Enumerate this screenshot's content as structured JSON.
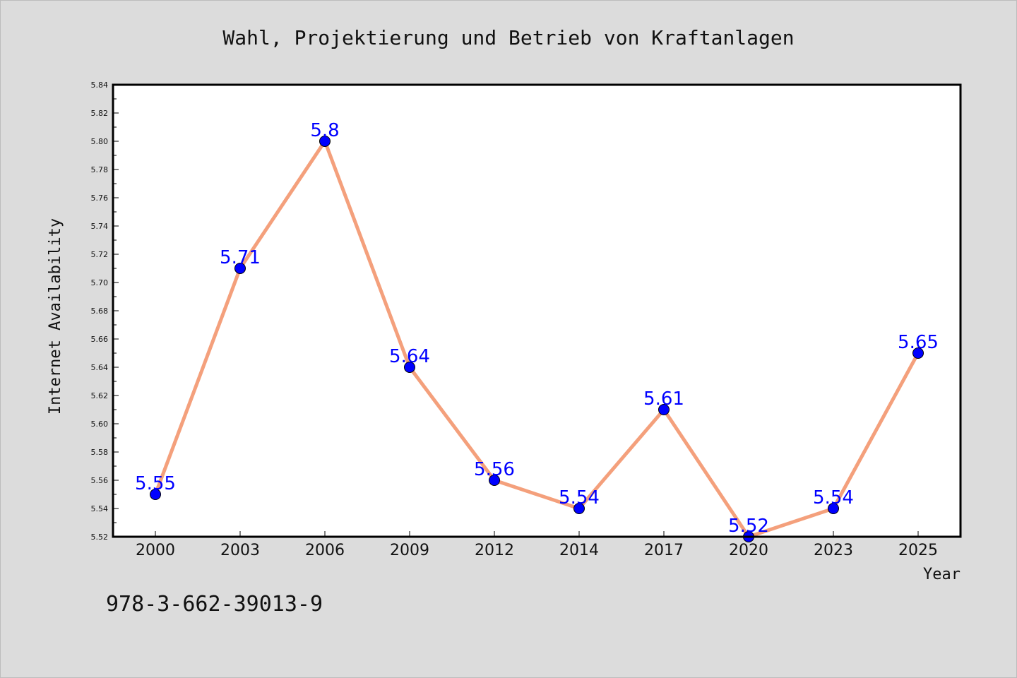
{
  "chart_data": {
    "type": "line",
    "title": "Wahl, Projektierung und Betrieb von Kraftanlagen",
    "xlabel": "Year",
    "ylabel": "Internet Availability",
    "categories": [
      "2000",
      "2003",
      "2006",
      "2009",
      "2012",
      "2014",
      "2017",
      "2020",
      "2023",
      "2025"
    ],
    "values": [
      5.55,
      5.71,
      5.8,
      5.64,
      5.56,
      5.54,
      5.61,
      5.52,
      5.54,
      5.65
    ],
    "data_labels": [
      "5.55",
      "5.71",
      "5.8",
      "5.64",
      "5.56",
      "5.54",
      "5.61",
      "5.52",
      "5.54",
      "5.65"
    ],
    "ylim": [
      5.52,
      5.84
    ],
    "yticks": [
      "5.52",
      "5.54",
      "5.56",
      "5.58",
      "5.60",
      "5.62",
      "5.64",
      "5.66",
      "5.68",
      "5.70",
      "5.72",
      "5.74",
      "5.76",
      "5.78",
      "5.80",
      "5.82",
      "5.84"
    ],
    "grid": false,
    "line_color": "#f4a07c",
    "marker_color": "#0000ff",
    "label_color": "#0000ff"
  },
  "footer_text": "978-3-662-39013-9"
}
